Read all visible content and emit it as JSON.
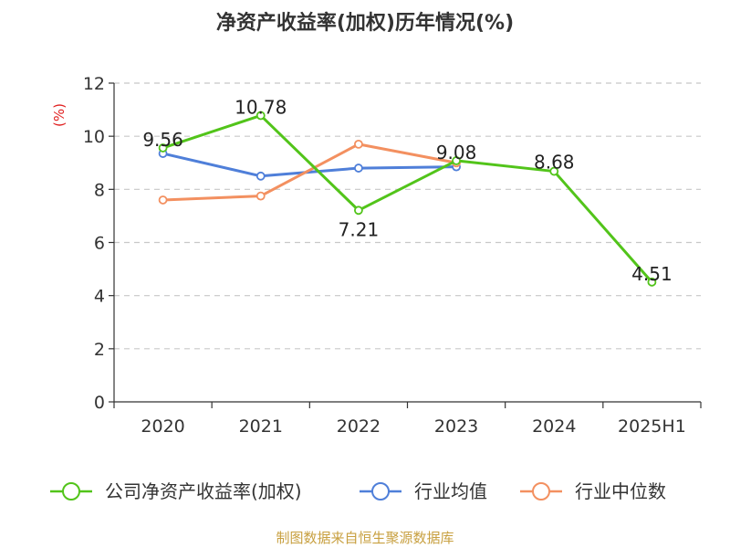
{
  "chart_data": {
    "type": "line",
    "title": "净资产收益率(加权)历年情况(%)",
    "ylabel": "(%)",
    "xlabel": "",
    "categories": [
      "2020",
      "2021",
      "2022",
      "2023",
      "2024",
      "2025H1"
    ],
    "ylim": [
      0,
      12
    ],
    "yticks": [
      0,
      2,
      4,
      6,
      8,
      10,
      12
    ],
    "grid": true,
    "legend_position": "bottom",
    "series": [
      {
        "name": "公司净资产收益率(加权)",
        "color": "#52c41a",
        "values": [
          9.56,
          10.78,
          7.21,
          9.08,
          8.68,
          4.51
        ],
        "data_labels": [
          "9.56",
          "10.78",
          "7.21",
          "9.08",
          "8.68",
          "4.51"
        ]
      },
      {
        "name": "行业均值",
        "color": "#4f7fd9",
        "values": [
          9.35,
          8.5,
          8.8,
          8.85,
          null,
          null
        ]
      },
      {
        "name": "行业中位数",
        "color": "#f39060",
        "values": [
          7.6,
          7.75,
          9.7,
          9.0,
          null,
          null
        ]
      }
    ],
    "source": "制图数据来自恒生聚源数据库"
  }
}
